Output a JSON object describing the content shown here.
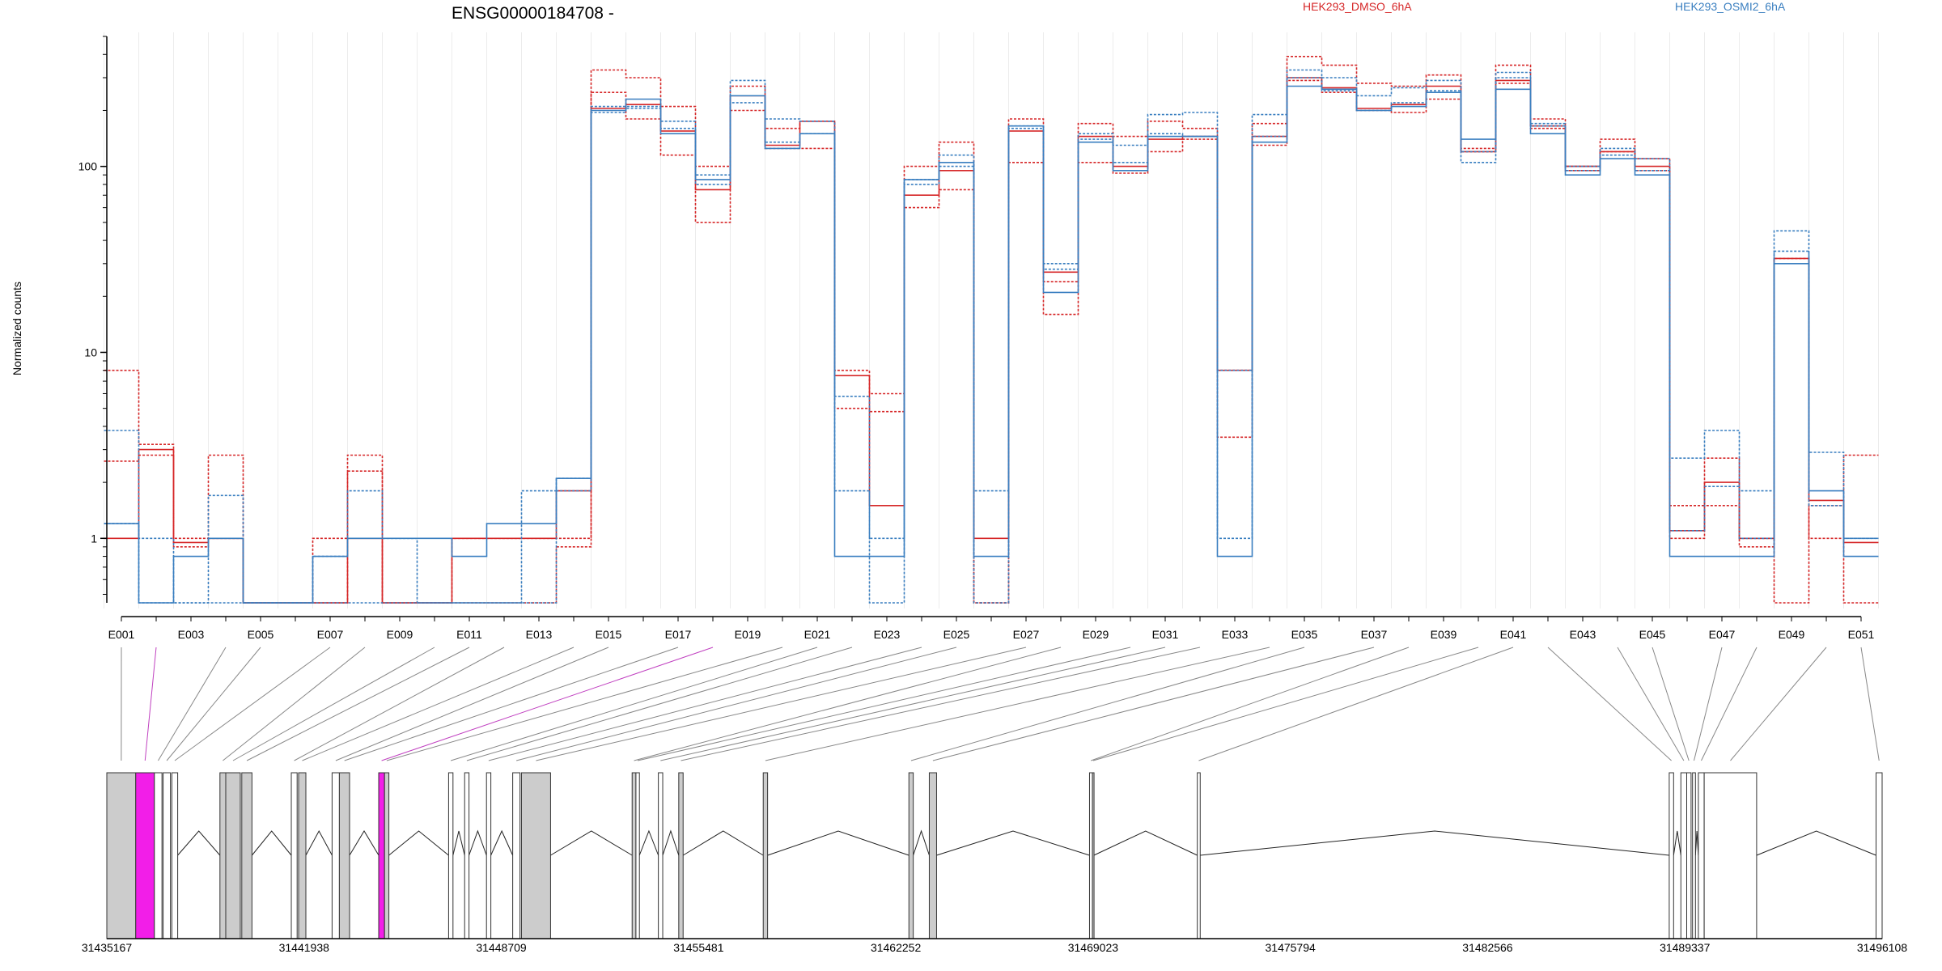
{
  "chart_data": {
    "type": "line",
    "title": "ENSG00000184708 -",
    "ylabel": "Normalized counts",
    "yscale": "log",
    "ylim": [
      0.45,
      500
    ],
    "y_ticks": [
      1,
      10,
      100
    ],
    "y_tick_labels": [
      "1",
      "10",
      "100"
    ],
    "legend_placement": "top",
    "colors": {
      "dmso": "#d62728",
      "osmi": "#3a7fc0",
      "dark": "#333366"
    },
    "exons": [
      "E001",
      "E002",
      "E003",
      "E004",
      "E005",
      "E006",
      "E007",
      "E008",
      "E009",
      "E010",
      "E011",
      "E012",
      "E013",
      "E014",
      "E015",
      "E016",
      "E017",
      "E018",
      "E019",
      "E020",
      "E021",
      "E022",
      "E023",
      "E024",
      "E025",
      "E026",
      "E027",
      "E028",
      "E029",
      "E030",
      "E031",
      "E032",
      "E033",
      "E034",
      "E035",
      "E036",
      "E037",
      "E038",
      "E039",
      "E040",
      "E041",
      "E042",
      "E043",
      "E044",
      "E045",
      "E046",
      "E047",
      "E048",
      "E049",
      "E050",
      "E051"
    ],
    "exon_tick_labels": [
      "E001",
      "E003",
      "E005",
      "E007",
      "E009",
      "E011",
      "E013",
      "E015",
      "E017",
      "E019",
      "E021",
      "E023",
      "E025",
      "E027",
      "E029",
      "E031",
      "E033",
      "E035",
      "E037",
      "E039",
      "E041",
      "E043",
      "E045",
      "E047",
      "E049",
      "E051"
    ],
    "legend": [
      {
        "name": "HEK293_DMSO_6hA",
        "color": "#d62728"
      },
      {
        "name": "HEK293_OSMI2_6hA",
        "color": "#3a7fc0"
      }
    ],
    "series": [
      {
        "group": "dmso",
        "style": "dashed",
        "values": [
          8,
          3.2,
          1,
          2.8,
          0.45,
          0.45,
          1,
          2.8,
          0.45,
          0.45,
          1,
          1,
          1,
          1,
          330,
          300,
          210,
          100,
          270,
          160,
          175,
          8,
          6,
          100,
          135,
          0.45,
          180,
          16,
          170,
          145,
          175,
          160,
          8,
          170,
          390,
          350,
          280,
          270,
          310,
          125,
          350,
          180,
          100,
          140,
          110,
          1,
          1.5,
          1,
          0.45,
          1.5,
          0.45
        ]
      },
      {
        "group": "dmso",
        "style": "dashed",
        "values": [
          2.6,
          2.8,
          0.9,
          1,
          0.45,
          0.45,
          0.45,
          2.3,
          0.45,
          0.45,
          0.45,
          0.45,
          0.45,
          0.9,
          250,
          180,
          115,
          50,
          200,
          125,
          125,
          5,
          4.8,
          60,
          75,
          0.45,
          105,
          24,
          105,
          92,
          120,
          140,
          3.5,
          130,
          290,
          250,
          200,
          195,
          230,
          120,
          280,
          160,
          95,
          120,
          95,
          1.5,
          2.7,
          0.9,
          32,
          1,
          2.8
        ]
      },
      {
        "group": "dmso",
        "style": "solid",
        "values": [
          1,
          3,
          0.95,
          1,
          0.45,
          0.45,
          0.45,
          1,
          0.45,
          0.45,
          1,
          1,
          1,
          1.8,
          205,
          215,
          155,
          75,
          240,
          130,
          175,
          7.5,
          1.5,
          70,
          95,
          1,
          155,
          27,
          145,
          100,
          140,
          145,
          8,
          145,
          300,
          265,
          205,
          215,
          270,
          120,
          290,
          165,
          100,
          120,
          100,
          1.1,
          2,
          1,
          32,
          1.6,
          0.95
        ]
      },
      {
        "group": "osmi",
        "style": "dashed",
        "values": [
          3.8,
          1,
          0.45,
          1.7,
          0.45,
          0.45,
          0.8,
          1.8,
          1,
          0.45,
          0.45,
          0.45,
          1.8,
          2.1,
          210,
          210,
          175,
          90,
          290,
          180,
          175,
          1.8,
          0.45,
          80,
          115,
          1.8,
          165,
          30,
          150,
          130,
          190,
          195,
          1,
          190,
          330,
          300,
          240,
          265,
          290,
          105,
          320,
          170,
          100,
          115,
          110,
          2.7,
          3.8,
          1.8,
          45,
          2.9,
          1
        ]
      },
      {
        "group": "osmi",
        "style": "solid",
        "values": [
          1.2,
          0.45,
          0.8,
          1,
          0.45,
          0.45,
          0.8,
          1,
          1,
          1,
          0.8,
          1.2,
          1.2,
          2.1,
          200,
          230,
          150,
          85,
          240,
          125,
          150,
          0.8,
          0.8,
          85,
          105,
          0.8,
          165,
          21,
          135,
          95,
          145,
          145,
          0.8,
          135,
          270,
          260,
          200,
          210,
          250,
          140,
          260,
          150,
          90,
          110,
          90,
          0.8,
          0.8,
          0.8,
          30,
          1.8,
          0.8
        ]
      },
      {
        "group": "osmi",
        "style": "dashed",
        "values": [
          1.2,
          0.45,
          0.45,
          0.45,
          0.45,
          0.45,
          0.45,
          0.45,
          0.45,
          0.45,
          0.45,
          0.45,
          0.45,
          1.8,
          195,
          205,
          160,
          80,
          220,
          135,
          150,
          5.8,
          1,
          85,
          100,
          0.45,
          160,
          28,
          140,
          105,
          150,
          145,
          8,
          145,
          300,
          255,
          200,
          220,
          255,
          120,
          300,
          165,
          95,
          125,
          95,
          1.1,
          1.9,
          1,
          35,
          1.5,
          1
        ]
      }
    ],
    "gene_track": {
      "start": 31435167,
      "end": 31496108,
      "coord_ticks": [
        31435167,
        31441938,
        31448709,
        31455481,
        31462252,
        31469023,
        31475794,
        31482566,
        31489337,
        31496108
      ],
      "coord_tick_labels": [
        "31435167",
        "31441938",
        "31448709",
        "31455481",
        "31462252",
        "31469023",
        "31475794",
        "31482566",
        "31489337",
        "31496108"
      ],
      "highlight_color": "#f21ee8",
      "exon_fill": "#cccccc",
      "exons": [
        {
          "id": "E001",
          "start": 31435167,
          "end": 31436160,
          "fill": "gray"
        },
        {
          "id": "E002",
          "start": 31436160,
          "end": 31436800,
          "fill": "highlight"
        },
        {
          "id": "E003",
          "start": 31436800,
          "end": 31437060,
          "fill": "white"
        },
        {
          "id": "E004",
          "start": 31437100,
          "end": 31437350,
          "fill": "white"
        },
        {
          "id": "E005",
          "start": 31437400,
          "end": 31437600,
          "fill": "white"
        },
        {
          "id": "E006",
          "start": 31439050,
          "end": 31439250,
          "fill": "gray"
        },
        {
          "id": "E007",
          "start": 31439250,
          "end": 31439750,
          "fill": "gray"
        },
        {
          "id": "E008",
          "start": 31439800,
          "end": 31440150,
          "fill": "gray"
        },
        {
          "id": "E009",
          "start": 31441500,
          "end": 31441700,
          "fill": "white"
        },
        {
          "id": "E010",
          "start": 31441750,
          "end": 31442000,
          "fill": "gray"
        },
        {
          "id": "E011",
          "start": 31442900,
          "end": 31443150,
          "fill": "white"
        },
        {
          "id": "E012",
          "start": 31443150,
          "end": 31443500,
          "fill": "gray"
        },
        {
          "id": "E013",
          "start": 31444500,
          "end": 31444700,
          "fill": "highlight"
        },
        {
          "id": "E014",
          "start": 31444700,
          "end": 31444850,
          "fill": "gray"
        },
        {
          "id": "E015",
          "start": 31446900,
          "end": 31447050,
          "fill": "white"
        },
        {
          "id": "E016",
          "start": 31447450,
          "end": 31447600,
          "fill": "white"
        },
        {
          "id": "E017",
          "start": 31448200,
          "end": 31448350,
          "fill": "white"
        },
        {
          "id": "E018",
          "start": 31449100,
          "end": 31449350,
          "fill": "white"
        },
        {
          "id": "E019",
          "start": 31449400,
          "end": 31450400,
          "fill": "gray"
        },
        {
          "id": "E020",
          "start": 31453200,
          "end": 31453330,
          "fill": "gray"
        },
        {
          "id": "E021",
          "start": 31453330,
          "end": 31453450,
          "fill": "white"
        },
        {
          "id": "E022",
          "start": 31454100,
          "end": 31454250,
          "fill": "white"
        },
        {
          "id": "E023",
          "start": 31454800,
          "end": 31454950,
          "fill": "gray"
        },
        {
          "id": "E024",
          "start": 31457700,
          "end": 31457850,
          "fill": "gray"
        },
        {
          "id": "E025",
          "start": 31462700,
          "end": 31462850,
          "fill": "gray"
        },
        {
          "id": "E026",
          "start": 31463400,
          "end": 31463650,
          "fill": "gray"
        },
        {
          "id": "E027",
          "start": 31468900,
          "end": 31469000,
          "fill": "white"
        },
        {
          "id": "E028",
          "start": 31469000,
          "end": 31469050,
          "fill": "gray"
        },
        {
          "id": "E029",
          "start": 31472600,
          "end": 31472700,
          "fill": "white"
        },
        {
          "id": "E030",
          "start": 31488800,
          "end": 31488950,
          "fill": "white"
        },
        {
          "id": "E031",
          "start": 31489200,
          "end": 31489400,
          "fill": "white"
        },
        {
          "id": "E032",
          "start": 31489400,
          "end": 31489550,
          "fill": "white"
        },
        {
          "id": "E033",
          "start": 31489600,
          "end": 31489700,
          "fill": "white"
        },
        {
          "id": "E034",
          "start": 31489800,
          "end": 31490000,
          "fill": "white"
        },
        {
          "id": "E035",
          "start": 31490000,
          "end": 31491800,
          "fill": "white"
        },
        {
          "id": "E036",
          "start": 31495900,
          "end": 31496108,
          "fill": "white"
        }
      ]
    }
  }
}
